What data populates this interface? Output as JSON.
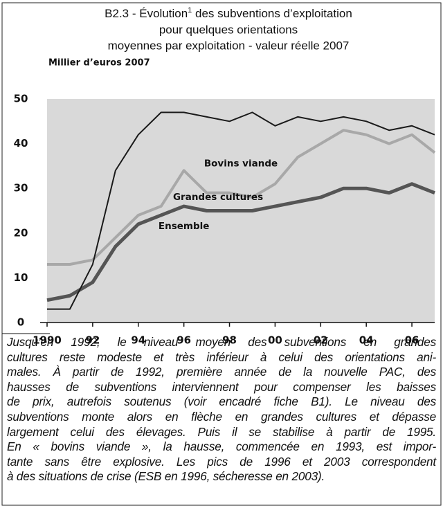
{
  "chart_data": {
    "type": "line",
    "title": "B2.3 - Évolution",
    "title_note": "1",
    "title_rest": [
      " des subventions d’exploitation",
      "pour quelques orientations",
      "moyennes par exploitation - valeur réelle 2007"
    ],
    "ylabel": "Millier d’euros 2007",
    "x": [
      1990,
      1991,
      1992,
      1993,
      1994,
      1995,
      1996,
      1997,
      1998,
      1999,
      2000,
      2001,
      2002,
      2003,
      2004,
      2005,
      2006,
      2007
    ],
    "series": [
      {
        "name": "Grandes cultures",
        "color": "#1a1a1a",
        "values": [
          3,
          3,
          13,
          34,
          42,
          47,
          47,
          46,
          45,
          47,
          44,
          46,
          45,
          46,
          45,
          43,
          44,
          42
        ]
      },
      {
        "name": "Bovins viande",
        "color": "#a8a8a8",
        "values": [
          13,
          13,
          14,
          19,
          24,
          26,
          34,
          29,
          29,
          28,
          31,
          37,
          40,
          43,
          42,
          40,
          42,
          38
        ]
      },
      {
        "name": "Ensemble",
        "color": "#555555",
        "values": [
          5,
          6,
          9,
          17,
          22,
          24,
          26,
          25,
          25,
          25,
          26,
          27,
          28,
          30,
          30,
          29,
          31,
          29
        ]
      }
    ],
    "xlim": [
      1990,
      2007
    ],
    "xticks": [
      1990,
      {
        "value": 1992,
        "label": "92"
      },
      {
        "value": 1994,
        "label": "94"
      },
      {
        "value": 1996,
        "label": "96"
      },
      {
        "value": 1998,
        "label": "98"
      },
      {
        "value": 2000,
        "label": "00"
      },
      {
        "value": 2002,
        "label": "02"
      },
      {
        "value": 2004,
        "label": "04"
      },
      {
        "value": 2006,
        "label": "06"
      }
    ],
    "ylim": [
      0,
      50
    ],
    "yticks": [
      0,
      10,
      20,
      30,
      40,
      50
    ],
    "grid": false,
    "caption": [
      "Jusqu’en 1992, le niveau moyen des subventions en grandes",
      "cultures reste modeste et très inférieur à celui des orientations ani-",
      "males. À partir de 1992, première année de la nouvelle PAC, des",
      "hausses de subventions interviennent pour compenser les baisses",
      "de prix, autrefois soutenus (voir encadré fiche B1). Le niveau des",
      "subventions monte alors en flèche en grandes cultures et dépasse",
      "largement celui des élevages. Puis il se stabilise à partir de 1995.",
      "En « bovins viande », la hausse, commencée en 1993, est impor-",
      "tante sans être explosive. Les pics de 1996 et 2003 correspondent",
      "à des situations de crise (ESB en 1996, sécheresse en 2003)."
    ]
  }
}
